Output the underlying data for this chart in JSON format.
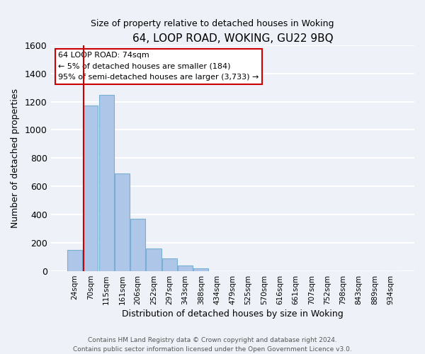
{
  "title": "64, LOOP ROAD, WOKING, GU22 9BQ",
  "subtitle": "Size of property relative to detached houses in Woking",
  "xlabel": "Distribution of detached houses by size in Woking",
  "ylabel": "Number of detached properties",
  "bar_labels": [
    "24sqm",
    "70sqm",
    "115sqm",
    "161sqm",
    "206sqm",
    "252sqm",
    "297sqm",
    "343sqm",
    "388sqm",
    "434sqm",
    "479sqm",
    "525sqm",
    "570sqm",
    "616sqm",
    "661sqm",
    "707sqm",
    "752sqm",
    "798sqm",
    "843sqm",
    "889sqm",
    "934sqm"
  ],
  "bar_values": [
    150,
    1175,
    1250,
    690,
    370,
    160,
    93,
    38,
    22,
    0,
    0,
    0,
    0,
    0,
    0,
    0,
    0,
    0,
    0,
    0,
    0
  ],
  "bar_color": "#aec6e8",
  "bar_edge_color": "#7aafd4",
  "ylim": [
    0,
    1600
  ],
  "yticks": [
    0,
    200,
    400,
    600,
    800,
    1000,
    1200,
    1400,
    1600
  ],
  "annotation_line1": "64 LOOP ROAD: 74sqm",
  "annotation_line2": "← 5% of detached houses are smaller (184)",
  "annotation_line3": "95% of semi-detached houses are larger (3,733) →",
  "vline_color": "#cc0000",
  "footer_line1": "Contains HM Land Registry data © Crown copyright and database right 2024.",
  "footer_line2": "Contains public sector information licensed under the Open Government Licence v3.0.",
  "background_color": "#eef2f8",
  "grid_color": "#ffffff"
}
